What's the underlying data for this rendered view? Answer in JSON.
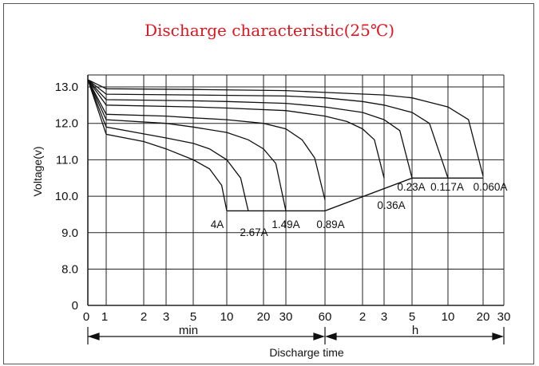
{
  "chart_data": {
    "type": "line",
    "title": "Discharge characteristic(25℃)",
    "ylabel": "Voltage(v)",
    "xlabel": "Discharge time",
    "x_scale": "log",
    "ylim": [
      0,
      13.5
    ],
    "y_ticks": [
      "0",
      "8.0",
      "9.0",
      "10.0",
      "11.0",
      "12.0",
      "13.0"
    ],
    "x_ticks": [
      "0",
      "1",
      "2",
      "3",
      "5",
      "10",
      "20",
      "30",
      "60",
      "2",
      "3",
      "5",
      "10",
      "20",
      "30"
    ],
    "x_unit_labels": [
      "min",
      "h"
    ],
    "grid": true,
    "series": [
      {
        "name": "4A",
        "x": [
          0,
          1,
          2,
          3,
          5,
          7,
          9,
          10
        ],
        "y": [
          13.2,
          11.7,
          11.5,
          11.3,
          11.0,
          10.75,
          10.3,
          9.6
        ]
      },
      {
        "name": "2.67A",
        "x": [
          0,
          1,
          3,
          5,
          7,
          10,
          13,
          15
        ],
        "y": [
          13.2,
          11.9,
          11.6,
          11.45,
          11.3,
          11.0,
          10.5,
          9.6
        ]
      },
      {
        "name": "1.49A",
        "x": [
          0,
          1,
          3,
          5,
          10,
          15,
          20,
          25,
          30
        ],
        "y": [
          13.2,
          12.1,
          12.0,
          11.9,
          11.75,
          11.55,
          11.3,
          10.9,
          9.6
        ]
      },
      {
        "name": "0.89A",
        "x": [
          0,
          1,
          3,
          5,
          10,
          20,
          30,
          40,
          50,
          60
        ],
        "y": [
          13.2,
          12.25,
          12.2,
          12.15,
          12.1,
          12.0,
          11.85,
          11.55,
          11.05,
          9.9
        ]
      },
      {
        "name": "0.36A",
        "x": [
          0,
          1,
          5,
          10,
          30,
          60,
          90,
          120,
          150,
          180
        ],
        "y": [
          13.2,
          12.5,
          12.45,
          12.42,
          12.35,
          12.2,
          12.05,
          11.85,
          11.55,
          10.5
        ]
      },
      {
        "name": "0.23A",
        "x": [
          0,
          1,
          5,
          10,
          30,
          60,
          120,
          180,
          240,
          300
        ],
        "y": [
          13.2,
          12.65,
          12.62,
          12.6,
          12.55,
          12.45,
          12.3,
          12.1,
          11.8,
          10.5
        ]
      },
      {
        "name": "0.117A",
        "x": [
          0,
          1,
          5,
          30,
          60,
          120,
          180,
          300,
          420,
          600
        ],
        "y": [
          13.2,
          12.8,
          12.78,
          12.75,
          12.7,
          12.6,
          12.5,
          12.3,
          12.0,
          10.5
        ]
      },
      {
        "name": "0.060A",
        "x": [
          0,
          1,
          5,
          30,
          60,
          180,
          300,
          600,
          900,
          1200
        ],
        "y": [
          13.2,
          12.95,
          12.93,
          12.9,
          12.85,
          12.78,
          12.7,
          12.45,
          12.1,
          10.55
        ]
      }
    ],
    "cutoff_line": {
      "x": [
        10,
        30,
        60,
        300,
        1200
      ],
      "y": [
        9.6,
        9.6,
        9.6,
        10.5,
        10.5
      ]
    }
  }
}
